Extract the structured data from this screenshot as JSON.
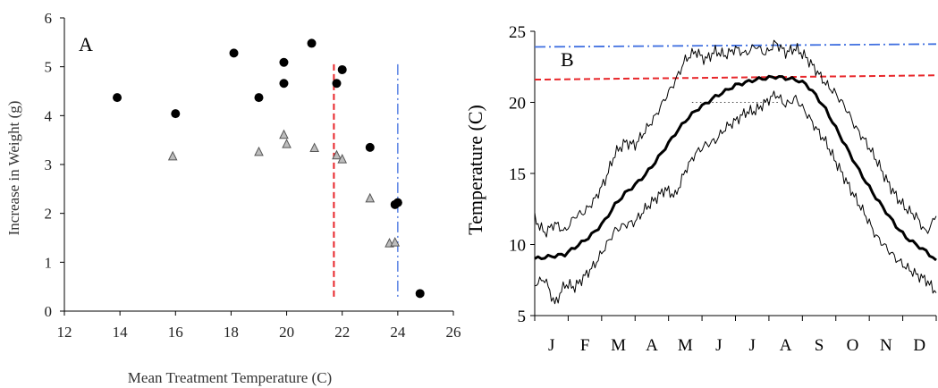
{
  "colors": {
    "axis": "#000000",
    "tick_text": "#222222",
    "label_text_a": "#333333",
    "filled_marker": "#000000",
    "open_marker_fill": "#bdbdbd",
    "open_marker_stroke": "#555555",
    "red_threshold": "#e8262a",
    "blue_threshold": "#3f6fe0",
    "dotted_line": "#444444"
  },
  "chart_data": [
    {
      "type": "scatter",
      "panel_label": "A",
      "title": "",
      "xlabel": "Mean Treatment Temperature (C)",
      "ylabel": "Increase in Weight (g)",
      "xlim": [
        12,
        26
      ],
      "ylim": [
        0,
        6
      ],
      "xticks": [
        "12",
        "14",
        "16",
        "18",
        "20",
        "22",
        "24",
        "26"
      ],
      "yticks": [
        "0",
        "1",
        "2",
        "3",
        "4",
        "5",
        "6"
      ],
      "series": [
        {
          "marker": "filled-circle",
          "points": [
            [
              13.9,
              4.37
            ],
            [
              16.0,
              4.04
            ],
            [
              18.1,
              5.28
            ],
            [
              19.0,
              4.37
            ],
            [
              19.9,
              5.09
            ],
            [
              19.9,
              4.66
            ],
            [
              20.9,
              5.48
            ],
            [
              21.8,
              4.66
            ],
            [
              22.0,
              4.94
            ],
            [
              23.0,
              3.35
            ],
            [
              23.9,
              2.18
            ],
            [
              24.0,
              2.22
            ],
            [
              24.8,
              0.36
            ]
          ]
        },
        {
          "marker": "open-triangle",
          "points": [
            [
              15.9,
              3.16
            ],
            [
              19.0,
              3.25
            ],
            [
              19.9,
              3.6
            ],
            [
              20.0,
              3.41
            ],
            [
              21.0,
              3.33
            ],
            [
              21.8,
              3.18
            ],
            [
              22.0,
              3.1
            ],
            [
              23.0,
              2.3
            ],
            [
              23.7,
              1.38
            ],
            [
              23.9,
              1.4
            ]
          ]
        }
      ],
      "reference_lines": [
        {
          "axis": "x",
          "value": 21.7,
          "style": "red-dashed"
        },
        {
          "axis": "x",
          "value": 24.0,
          "style": "blue-dashdot"
        }
      ]
    },
    {
      "type": "line",
      "panel_label": "B",
      "title": "",
      "xlabel": "",
      "ylabel": "Temperature (C)",
      "ylim": [
        5,
        25
      ],
      "xlim": [
        0,
        12
      ],
      "categories": [
        "J",
        "F",
        "M",
        "A",
        "M",
        "J",
        "J",
        "A",
        "S",
        "O",
        "N",
        "D"
      ],
      "yticks": [
        "5",
        "10",
        "15",
        "20",
        "25"
      ],
      "series": [
        {
          "style": "mean-thick",
          "x": [
            0,
            0.3,
            0.6,
            0.9,
            1.2,
            1.5,
            1.8,
            2.1,
            2.4,
            2.7,
            3.0,
            3.3,
            3.6,
            3.9,
            4.2,
            4.5,
            4.8,
            5.1,
            5.4,
            5.7,
            6.0,
            6.3,
            6.6,
            6.9,
            7.2,
            7.5,
            7.8,
            8.1,
            8.4,
            8.7,
            9.0,
            9.3,
            9.6,
            9.9,
            10.2,
            10.5,
            10.8,
            11.1,
            11.4,
            11.7,
            12.0
          ],
          "values": [
            9.0,
            9.1,
            9.2,
            9.3,
            9.8,
            10.3,
            10.9,
            11.7,
            12.8,
            13.6,
            14.2,
            14.9,
            15.8,
            16.8,
            17.8,
            18.7,
            19.4,
            19.9,
            20.4,
            20.8,
            21.2,
            21.4,
            21.6,
            21.7,
            21.8,
            21.7,
            21.6,
            21.3,
            20.5,
            19.5,
            18.2,
            16.9,
            15.6,
            14.4,
            13.3,
            12.3,
            11.3,
            10.5,
            10.0,
            9.5,
            8.9
          ]
        },
        {
          "style": "max-thin",
          "x": [
            0,
            0.3,
            0.6,
            0.9,
            1.2,
            1.5,
            1.8,
            2.1,
            2.4,
            2.7,
            3.0,
            3.3,
            3.6,
            3.9,
            4.2,
            4.5,
            4.8,
            5.1,
            5.4,
            5.7,
            6.0,
            6.3,
            6.6,
            6.9,
            7.2,
            7.5,
            7.8,
            8.1,
            8.4,
            8.7,
            9.0,
            9.3,
            9.6,
            9.9,
            10.2,
            10.5,
            10.8,
            11.1,
            11.4,
            11.7,
            12.0
          ],
          "values": [
            11.8,
            10.8,
            11.5,
            10.9,
            12.0,
            12.3,
            13.2,
            14.5,
            16.4,
            17.2,
            17.0,
            18.0,
            19.0,
            20.3,
            21.5,
            23.0,
            23.6,
            23.0,
            23.6,
            23.3,
            23.8,
            23.4,
            24.0,
            23.4,
            24.2,
            23.5,
            23.8,
            23.2,
            22.3,
            21.3,
            20.6,
            19.6,
            18.2,
            17.2,
            16.0,
            14.6,
            13.4,
            12.5,
            12.0,
            10.8,
            12.0
          ]
        },
        {
          "style": "min-thin",
          "x": [
            0,
            0.3,
            0.6,
            0.9,
            1.2,
            1.5,
            1.8,
            2.1,
            2.4,
            2.7,
            3.0,
            3.3,
            3.6,
            3.9,
            4.2,
            4.5,
            4.8,
            5.1,
            5.4,
            5.7,
            6.0,
            6.3,
            6.6,
            6.9,
            7.2,
            7.5,
            7.8,
            8.1,
            8.4,
            8.7,
            9.0,
            9.3,
            9.6,
            9.9,
            10.2,
            10.5,
            10.8,
            11.1,
            11.4,
            11.7,
            12.0
          ],
          "values": [
            7.2,
            7.6,
            5.8,
            7.2,
            7.0,
            7.8,
            8.6,
            9.8,
            11.0,
            11.4,
            11.6,
            12.5,
            13.2,
            13.9,
            13.4,
            15.2,
            16.4,
            17.0,
            17.3,
            18.2,
            18.7,
            19.3,
            19.4,
            20.0,
            20.6,
            19.8,
            20.3,
            19.3,
            18.2,
            17.2,
            15.8,
            14.5,
            13.2,
            12.0,
            10.6,
            9.8,
            9.0,
            8.4,
            7.9,
            7.5,
            6.6
          ]
        }
      ],
      "reference_lines": [
        {
          "axis": "y",
          "y_start": 23.9,
          "y_end": 24.1,
          "style": "blue-dashdot"
        },
        {
          "axis": "y",
          "y_start": 21.6,
          "y_end": 21.9,
          "style": "red-dashed"
        },
        {
          "axis": "y",
          "value": 20.0,
          "x_from": 4.7,
          "x_to": 7.3,
          "style": "black-dotted"
        }
      ]
    }
  ]
}
